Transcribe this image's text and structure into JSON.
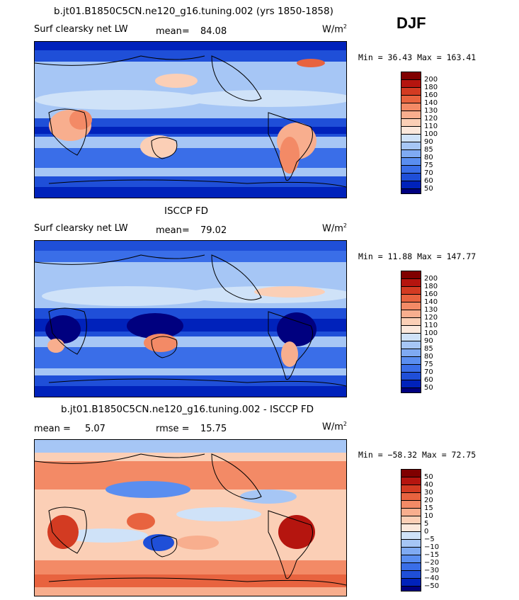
{
  "season": "DJF",
  "colors": {
    "ramp": [
      "#00007f",
      "#0022bb",
      "#1f4fd8",
      "#3a6ee8",
      "#5a8ef0",
      "#7faaf2",
      "#a6c6f5",
      "#cfe2f8",
      "#fbe8dc",
      "#fbcfb6",
      "#f8ae8e",
      "#f38a66",
      "#e8633f",
      "#d33b22",
      "#b5150f",
      "#800000"
    ],
    "land": "#000000"
  },
  "panels": [
    {
      "title": "b.jt01.B1850C5CN.ne120_g16.tuning.002 (yrs 1850-1858)",
      "left_label": "Surf clearsky net LW",
      "stat1_label": "mean=",
      "stat1_value": "84.08",
      "stat2_label": "",
      "stat2_value": "",
      "units_main": "W/m",
      "units_sup": "2",
      "minmax": "Min =  36.43 Max = 163.41",
      "colorbar_ticks": [
        "200",
        "180",
        "160",
        "140",
        "130",
        "120",
        "110",
        "100",
        "90",
        "85",
        "80",
        "75",
        "70",
        "60",
        "50"
      ]
    },
    {
      "title": "ISCCP FD",
      "left_label": "Surf clearsky net LW",
      "stat1_label": "mean=",
      "stat1_value": "79.02",
      "stat2_label": "",
      "stat2_value": "",
      "units_main": "W/m",
      "units_sup": "2",
      "minmax": "Min =  11.88 Max = 147.77",
      "colorbar_ticks": [
        "200",
        "180",
        "160",
        "140",
        "130",
        "120",
        "110",
        "100",
        "90",
        "85",
        "80",
        "75",
        "70",
        "60",
        "50"
      ]
    },
    {
      "title": "b.jt01.B1850C5CN.ne120_g16.tuning.002 - ISCCP FD",
      "left_label": "",
      "stat1_label": "mean =",
      "stat1_value": "5.07",
      "stat2_label": "rmse =",
      "stat2_value": "15.75",
      "units_main": "W/m",
      "units_sup": "2",
      "minmax": "Min = −58.32 Max =  72.75",
      "colorbar_ticks": [
        "50",
        "40",
        "30",
        "20",
        "15",
        "10",
        "5",
        "0",
        "−5",
        "−10",
        "−15",
        "−20",
        "−30",
        "−40",
        "−50"
      ]
    }
  ],
  "chart_data": [
    {
      "type": "heatmap",
      "title": "b.jt01.B1850C5CN.ne120_g16.tuning.002 (yrs 1850-1858)",
      "variable": "Surf clearsky net LW",
      "units": "W/m2",
      "mean": 84.08,
      "min": 36.43,
      "max": 163.41,
      "levels": [
        50,
        60,
        70,
        75,
        80,
        85,
        90,
        100,
        110,
        120,
        130,
        140,
        160,
        180,
        200
      ]
    },
    {
      "type": "heatmap",
      "title": "ISCCP FD",
      "variable": "Surf clearsky net LW",
      "units": "W/m2",
      "mean": 79.02,
      "min": 11.88,
      "max": 147.77,
      "levels": [
        50,
        60,
        70,
        75,
        80,
        85,
        90,
        100,
        110,
        120,
        130,
        140,
        160,
        180,
        200
      ]
    },
    {
      "type": "heatmap",
      "title": "b.jt01.B1850C5CN.ne120_g16.tuning.002 - ISCCP FD",
      "units": "W/m2",
      "mean": 5.07,
      "rmse": 15.75,
      "min": -58.32,
      "max": 72.75,
      "levels": [
        -50,
        -40,
        -30,
        -20,
        -15,
        -10,
        -5,
        0,
        5,
        10,
        15,
        20,
        30,
        40,
        50
      ]
    }
  ]
}
